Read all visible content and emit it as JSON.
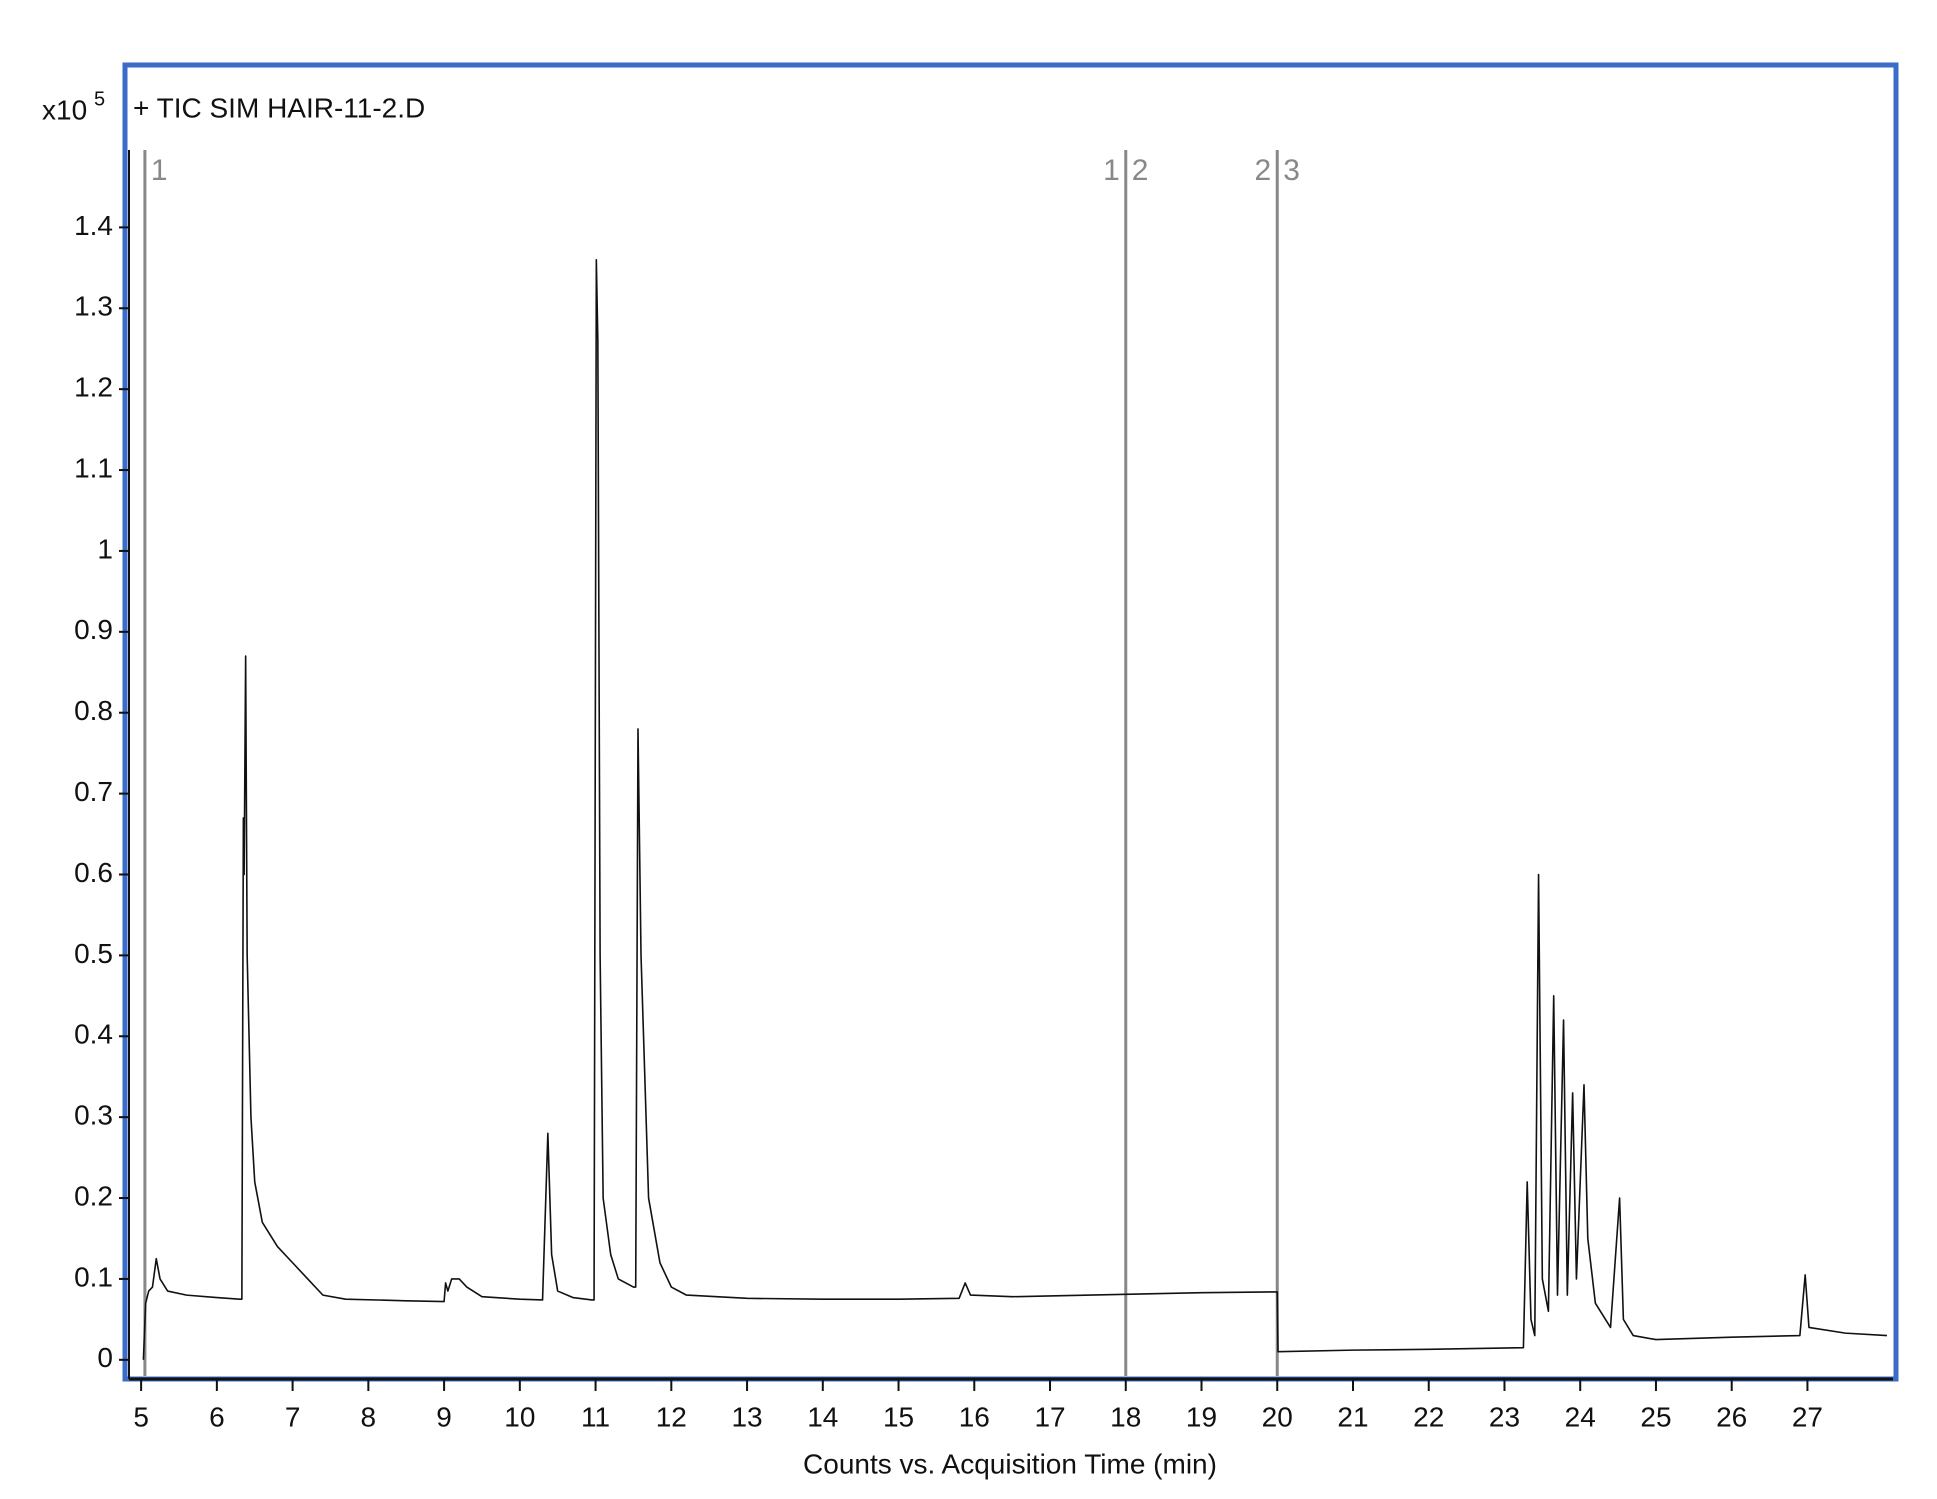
{
  "chart_data": {
    "type": "line",
    "title": "+ TIC SIM HAIR-11-2.D",
    "y_multiplier": {
      "base": "x10",
      "exponent": 5
    },
    "xlabel": "Counts vs. Acquisition Time (min)",
    "xlim": [
      4.84,
      28.09
    ],
    "ylim": [
      -0.02,
      1.5
    ],
    "xticks": [
      5,
      6,
      7,
      8,
      9,
      10,
      11,
      12,
      13,
      14,
      15,
      16,
      17,
      18,
      19,
      20,
      21,
      22,
      23,
      24,
      25,
      26,
      27
    ],
    "yticks": [
      0,
      0.1,
      0.2,
      0.3,
      0.4,
      0.5,
      0.6,
      0.7,
      0.8,
      0.9,
      1,
      1.1,
      1.2,
      1.3,
      1.4
    ],
    "segments": [
      {
        "x": 5.05,
        "labels": [
          "1"
        ]
      },
      {
        "x": 18,
        "labels": [
          "1",
          "2"
        ]
      },
      {
        "x": 20,
        "labels": [
          "2",
          "3"
        ]
      }
    ],
    "series": [
      {
        "color": "#111111",
        "x": [
          5.03,
          5.06,
          5.1,
          5.15,
          5.2,
          5.25,
          5.35,
          5.6,
          6.0,
          6.3,
          6.33,
          6.35,
          6.36,
          6.38,
          6.4,
          6.45,
          6.5,
          6.6,
          6.8,
          7.0,
          7.2,
          7.4,
          7.7,
          8.5,
          9.0,
          9.02,
          9.05,
          9.1,
          9.2,
          9.3,
          9.5,
          10.0,
          10.3,
          10.37,
          10.42,
          10.5,
          10.7,
          10.95,
          10.98,
          11.01,
          11.03,
          11.06,
          11.1,
          11.2,
          11.3,
          11.5,
          11.53,
          11.56,
          11.6,
          11.7,
          11.85,
          12.0,
          12.2,
          13,
          14,
          15,
          15.8,
          15.88,
          15.95,
          16.5,
          17,
          18,
          19,
          20,
          20.01,
          21,
          22,
          23.25,
          23.3,
          23.35,
          23.4,
          23.45,
          23.5,
          23.58,
          23.65,
          23.7,
          23.78,
          23.83,
          23.9,
          23.95,
          24.05,
          24.1,
          24.2,
          24.4,
          24.52,
          24.57,
          24.7,
          25,
          26,
          26.9,
          26.97,
          27.02,
          27.5,
          28.05
        ],
        "values": [
          0.0,
          0.07,
          0.085,
          0.09,
          0.125,
          0.1,
          0.085,
          0.08,
          0.077,
          0.075,
          0.075,
          0.67,
          0.6,
          0.87,
          0.5,
          0.3,
          0.22,
          0.17,
          0.14,
          0.12,
          0.1,
          0.08,
          0.075,
          0.073,
          0.072,
          0.095,
          0.085,
          0.1,
          0.1,
          0.09,
          0.078,
          0.075,
          0.074,
          0.28,
          0.13,
          0.085,
          0.077,
          0.074,
          0.074,
          1.36,
          1.26,
          0.5,
          0.2,
          0.13,
          0.1,
          0.09,
          0.09,
          0.78,
          0.5,
          0.2,
          0.12,
          0.09,
          0.08,
          0.076,
          0.075,
          0.075,
          0.076,
          0.095,
          0.08,
          0.078,
          0.079,
          0.081,
          0.083,
          0.084,
          0.01,
          0.012,
          0.013,
          0.015,
          0.22,
          0.05,
          0.03,
          0.6,
          0.1,
          0.06,
          0.45,
          0.08,
          0.42,
          0.08,
          0.33,
          0.1,
          0.34,
          0.15,
          0.07,
          0.04,
          0.2,
          0.05,
          0.03,
          0.025,
          0.028,
          0.03,
          0.105,
          0.04,
          0.033,
          0.03
        ]
      }
    ]
  }
}
